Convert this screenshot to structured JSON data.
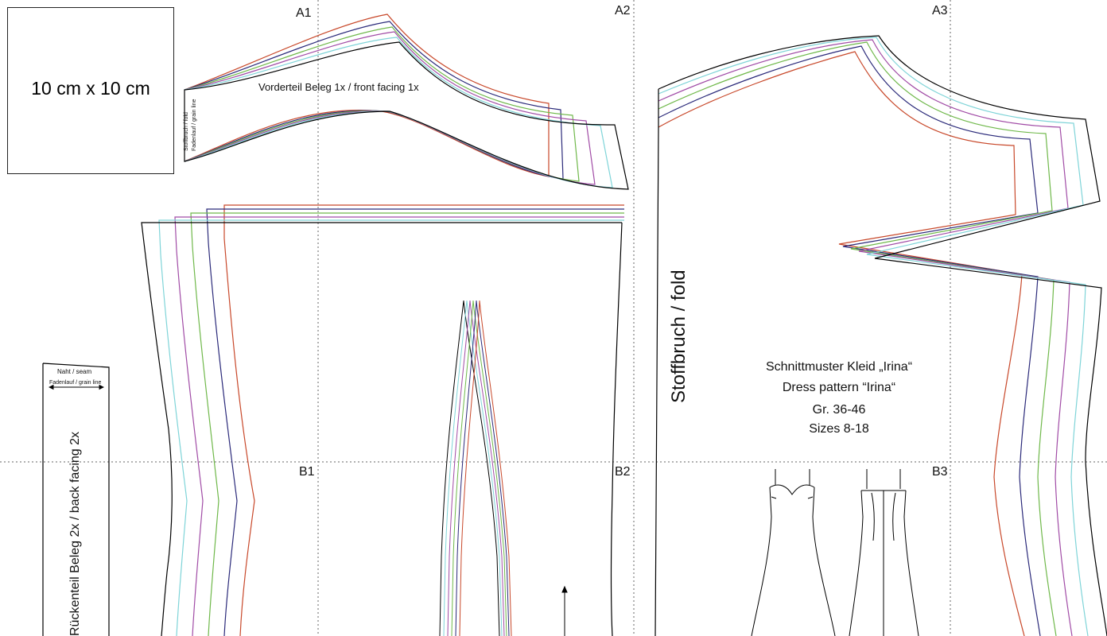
{
  "tiles": {
    "a1": "A1",
    "a2": "A2",
    "a3": "A3",
    "b1": "B1",
    "b2": "B2",
    "b3": "B3"
  },
  "scale": "10 cm x 10 cm",
  "front_facing": {
    "title": "Vorderteil Beleg 1x / front facing 1x",
    "fold": "Stoffbruch / fold",
    "grain": "Fadenlauf / grain line"
  },
  "back_facing": {
    "seam": "Naht / seam",
    "grain": "Fadenlauf / grain line",
    "title": "Rückenteil Beleg 2x / back facing 2x"
  },
  "front_bodice": {
    "fold": "Stoffbruch / fold"
  },
  "info": {
    "line1": "Schnittmuster Kleid „Irina“",
    "line2": "Dress pattern “Irina“",
    "line3": "Gr. 36-46",
    "line4": "Sizes 8-18"
  },
  "size_colors": [
    "#000000",
    "#7fd4d8",
    "#a14ca6",
    "#6fb84a",
    "#2b2a7a",
    "#c8482a"
  ]
}
